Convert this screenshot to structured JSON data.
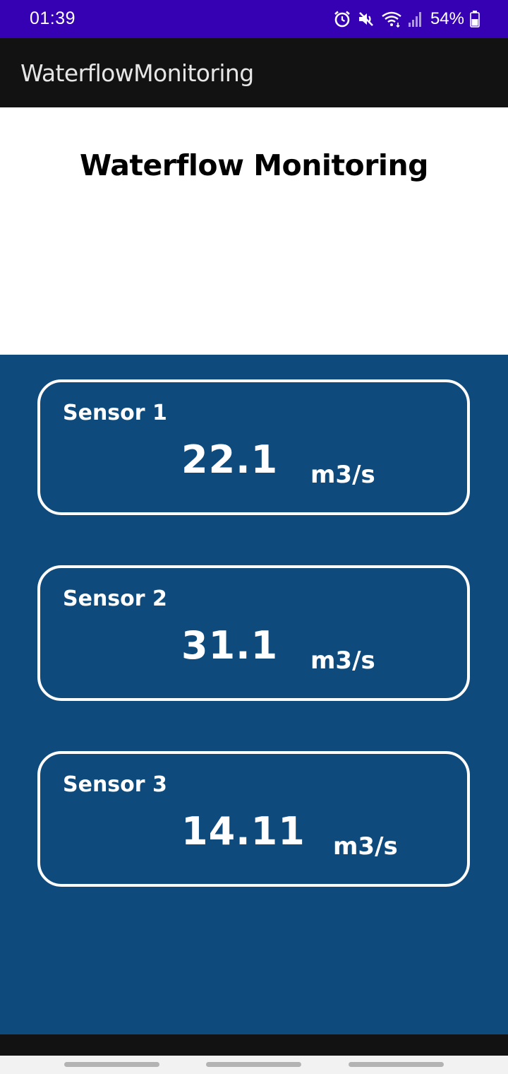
{
  "status_bar": {
    "time": "01:39",
    "battery": "54%",
    "icons": [
      "alarm-icon",
      "mute-icon",
      "wifi-icon",
      "signal-icon",
      "battery-icon"
    ],
    "background": "#3600b3"
  },
  "app_bar": {
    "title": "WaterflowMonitoring",
    "background": "#121212"
  },
  "header": {
    "title": "Waterflow Monitoring"
  },
  "sensors": [
    {
      "name": "Sensor 1",
      "value": "22.1",
      "unit": "m3/s"
    },
    {
      "name": "Sensor 2",
      "value": "31.1",
      "unit": "m3/s"
    },
    {
      "name": "Sensor 3",
      "value": "14.11",
      "unit": "m3/s"
    }
  ],
  "colors": {
    "panel_background": "#0e4b7c",
    "card_border": "#ffffff"
  },
  "nav_bar": {
    "buttons": [
      "recents-button",
      "home-button",
      "back-button"
    ]
  }
}
